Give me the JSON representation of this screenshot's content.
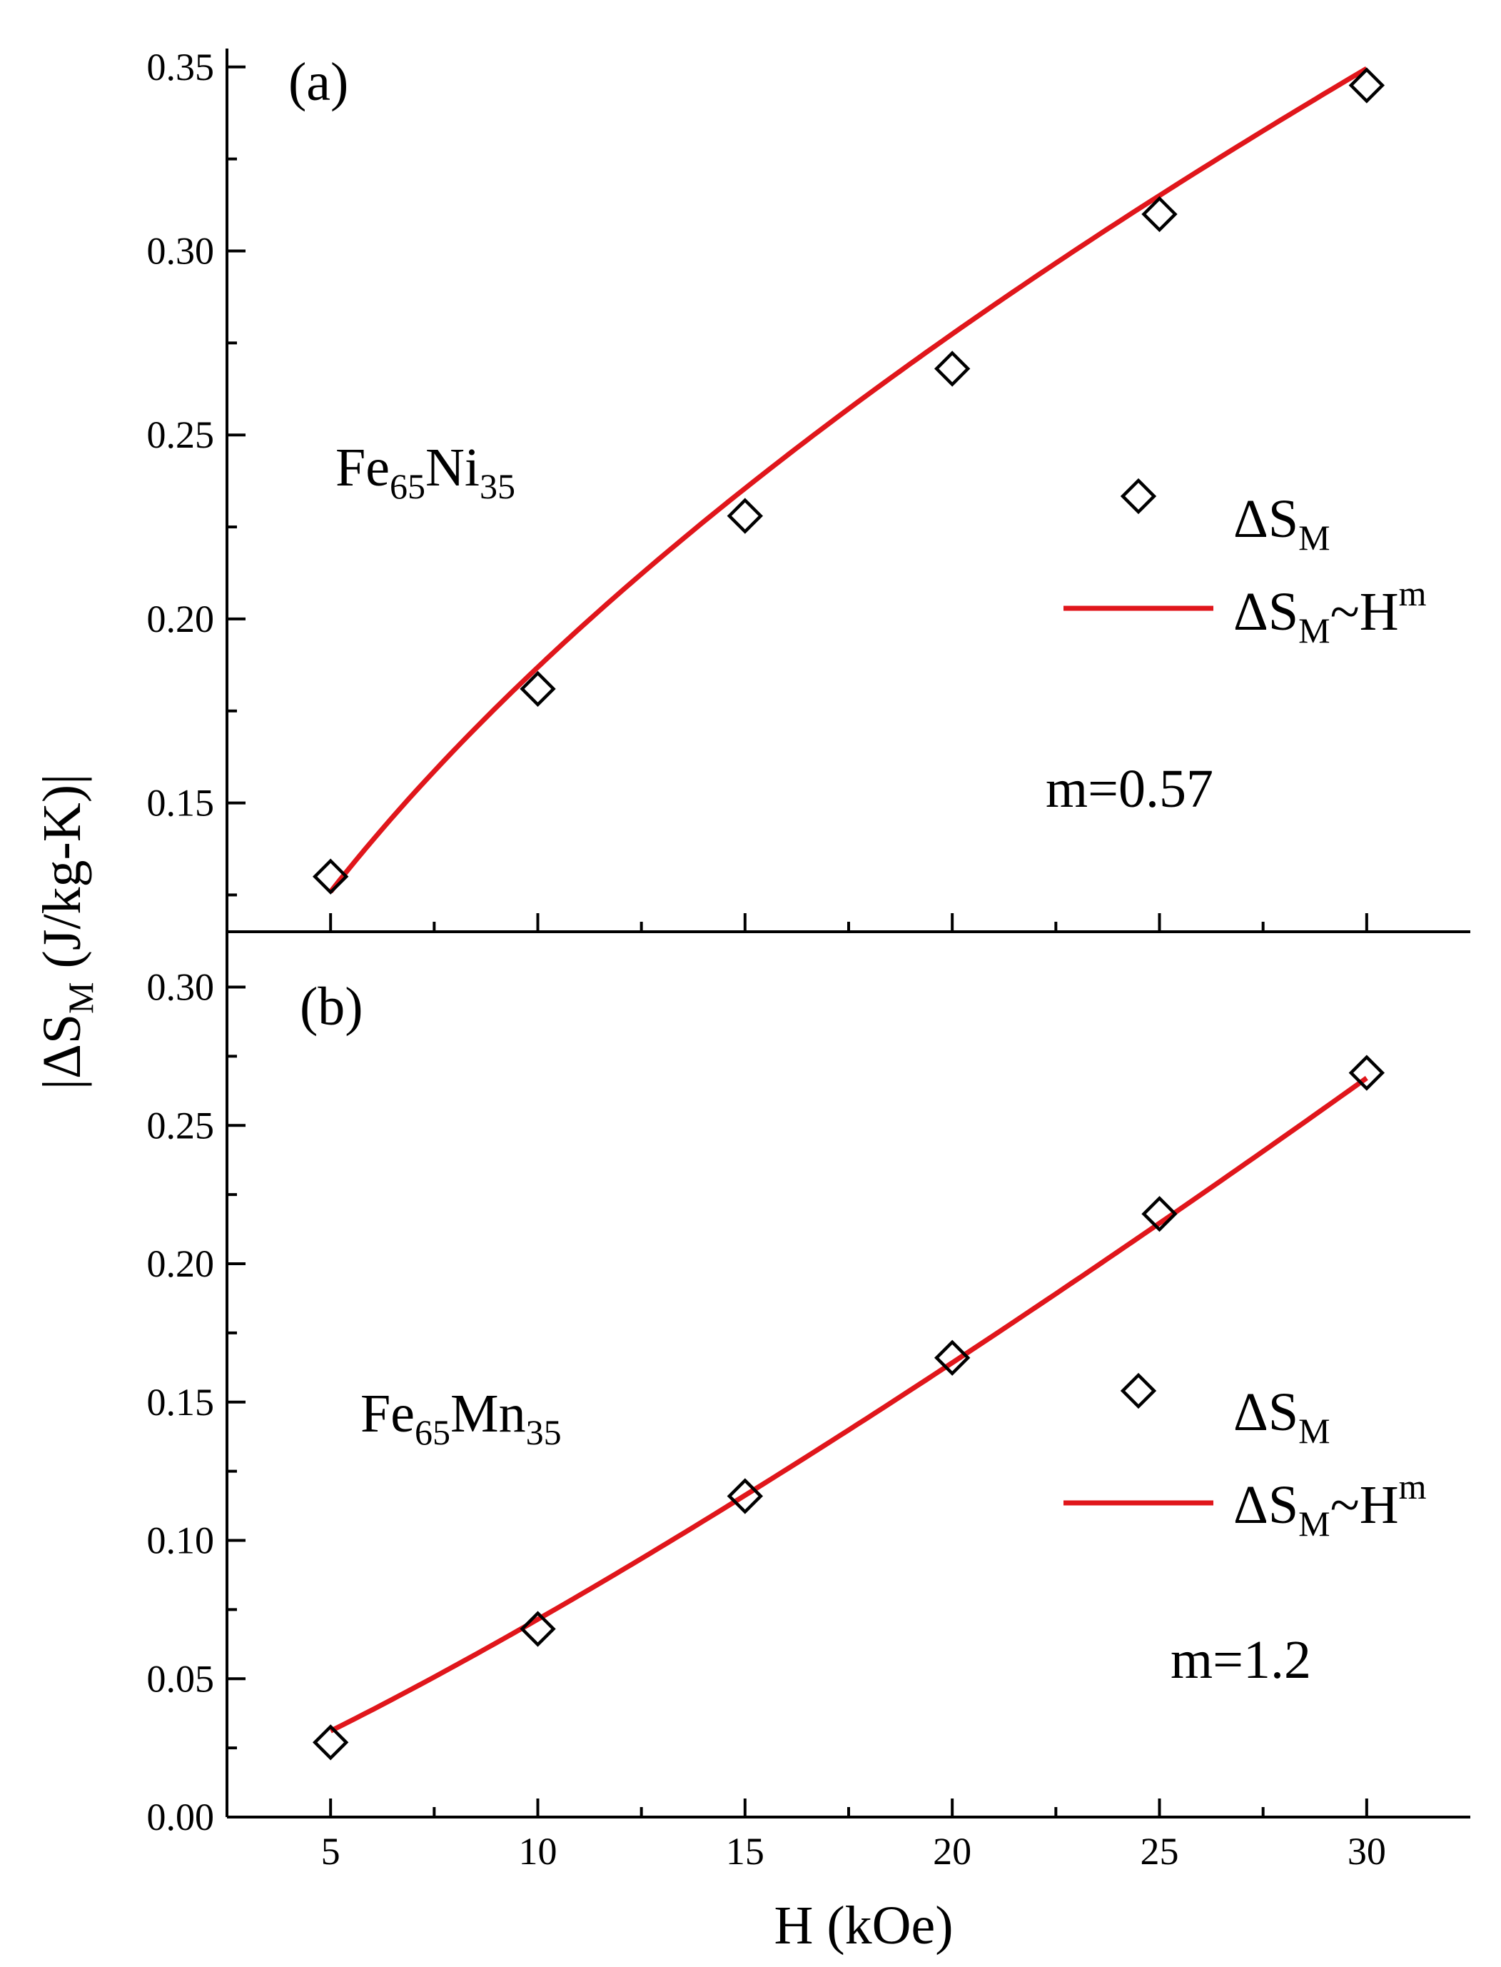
{
  "chart_data": [
    {
      "type": "scatter",
      "panel_label": "(a)",
      "material": {
        "base": "Fe",
        "s1": "65",
        "el2": "Ni",
        "s2": "35"
      },
      "exponent_label": "m=0.57",
      "legend": {
        "marker_symbol": "ΔS",
        "marker_sub": "M",
        "line_symbol": "ΔS",
        "line_sub": "M",
        "line_mid": "~H",
        "line_sup": "m"
      },
      "xlim": [
        2.5,
        32.5
      ],
      "ylim": [
        0.115,
        0.355
      ],
      "x_ticks": [
        5,
        10,
        15,
        20,
        25,
        30
      ],
      "y_ticks": [
        0.15,
        0.2,
        0.25,
        0.3,
        0.35
      ],
      "y_tick_labels": [
        "0.15",
        "0.20",
        "0.25",
        "0.30",
        "0.35"
      ],
      "series": [
        {
          "kind": "points",
          "x": [
            5,
            10,
            15,
            20,
            25,
            30
          ],
          "y": [
            0.13,
            0.181,
            0.228,
            0.268,
            0.31,
            0.345
          ]
        },
        {
          "kind": "fit",
          "exponent": 0.57,
          "x_range": [
            5,
            30
          ],
          "coef": 0.0503
        }
      ],
      "colors": {
        "points": "#000000",
        "fit": "#e0161b"
      }
    },
    {
      "type": "scatter",
      "panel_label": "(b)",
      "material": {
        "base": "Fe",
        "s1": "65",
        "el2": "Mn",
        "s2": "35"
      },
      "exponent_label": "m=1.2",
      "legend": {
        "marker_symbol": "ΔS",
        "marker_sub": "M",
        "line_symbol": "ΔS",
        "line_sub": "M",
        "line_mid": "~H",
        "line_sup": "m"
      },
      "xlim": [
        2.5,
        32.5
      ],
      "ylim": [
        0.0,
        0.32
      ],
      "x_ticks": [
        5,
        10,
        15,
        20,
        25,
        30
      ],
      "x_tick_labels": [
        "5",
        "10",
        "15",
        "20",
        "25",
        "30"
      ],
      "y_ticks": [
        0.0,
        0.05,
        0.1,
        0.15,
        0.2,
        0.25,
        0.3
      ],
      "y_tick_labels": [
        "0.00",
        "0.05",
        "0.10",
        "0.15",
        "0.20",
        "0.25",
        "0.30"
      ],
      "series": [
        {
          "kind": "points",
          "x": [
            5,
            10,
            15,
            20,
            25,
            30
          ],
          "y": [
            0.027,
            0.068,
            0.116,
            0.166,
            0.218,
            0.269
          ]
        },
        {
          "kind": "fit",
          "exponent": 1.2,
          "x_range": [
            5,
            30
          ],
          "coef": 0.00451
        }
      ],
      "colors": {
        "points": "#000000",
        "fit": "#e0161b"
      }
    }
  ],
  "axes": {
    "xlabel": "H (kOe)",
    "ylabel_open": "|ΔS",
    "ylabel_sub": "M",
    "ylabel_close": " (J/kg-K)|"
  }
}
